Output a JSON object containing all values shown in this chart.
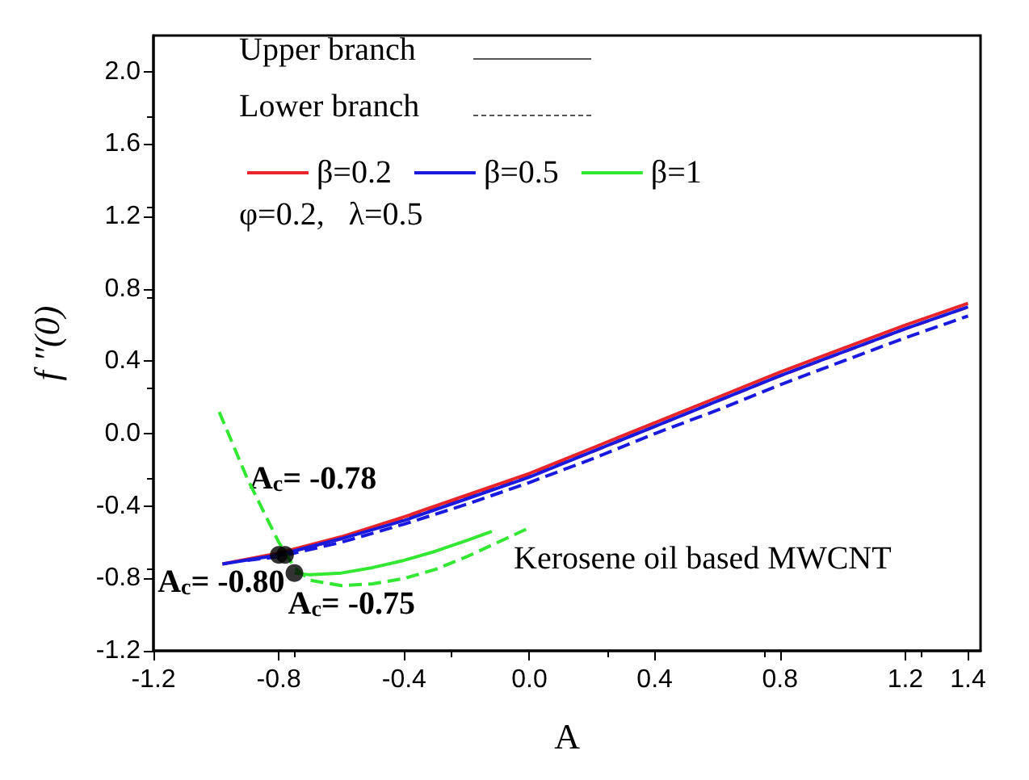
{
  "chart_data": {
    "type": "line",
    "xlabel": "A",
    "ylabel": "f ″(0)",
    "xlim": [
      -1.2,
      1.44
    ],
    "xticks": [
      -1.2,
      -0.8,
      -0.4,
      {
        "value": 0,
        "label": "0.0"
      },
      0.4,
      0.8,
      1.2,
      1.4
    ],
    "ylim": [
      -1.2,
      2.2
    ],
    "yticks": [
      -1.2,
      -0.8,
      -0.4,
      {
        "value": 0,
        "label": "0.0"
      },
      0.4,
      0.8,
      1.2,
      1.6,
      {
        "value": 2,
        "label": "2.0"
      }
    ],
    "grid": false,
    "legend": "top left",
    "marker": "none",
    "annotations": [
      "Upper branch",
      "Lower branch",
      "φ=0.2,   λ=0.5",
      "Kerosene oil based MWCNT",
      {
        "text": "A$_{c}$= -0.78",
        "x": -0.78,
        "y": -0.67
      },
      {
        "text": "A$_{c}$= -0.80",
        "x": -0.8,
        "y": -0.67
      },
      {
        "text": "A$_{c}$= -0.75",
        "x": -0.75,
        "y": -0.77
      }
    ],
    "series": [
      {
        "name": "β=0.2",
        "color": "#e8252a",
        "line_style": "solid",
        "x": [
          -0.98,
          -0.8,
          -0.6,
          -0.4,
          -0.2,
          0,
          0.2,
          0.4,
          0.6,
          0.8,
          1.0,
          1.2,
          1.4
        ],
        "values": [
          -0.72,
          -0.66,
          -0.57,
          -0.46,
          -0.34,
          -0.22,
          -0.08,
          0.06,
          0.2,
          0.34,
          0.47,
          0.6,
          0.72
        ]
      },
      {
        "color": "#e8252a",
        "line_style": "dashed",
        "x": [
          -0.8,
          -0.6,
          -0.4,
          -0.2,
          0,
          0.2,
          0.4,
          0.6,
          0.8,
          1.0,
          1.2,
          1.4
        ],
        "values": [
          -0.67,
          -0.58,
          -0.47,
          -0.35,
          -0.23,
          -0.1,
          0.04,
          0.18,
          0.32,
          0.45,
          0.58,
          0.7
        ]
      },
      {
        "name": "β=0.5",
        "color": "#1a1adf",
        "line_style": "solid",
        "x": [
          -0.98,
          -0.8,
          -0.6,
          -0.4,
          -0.2,
          0,
          0.2,
          0.4,
          0.6,
          0.8,
          1.0,
          1.2,
          1.4
        ],
        "values": [
          -0.72,
          -0.67,
          -0.58,
          -0.48,
          -0.36,
          -0.24,
          -0.1,
          0.04,
          0.18,
          0.32,
          0.45,
          0.58,
          0.7
        ]
      },
      {
        "color": "#1a1adf",
        "line_style": "dashed",
        "x": [
          -0.9,
          -0.8,
          -0.6,
          -0.4,
          -0.2,
          0,
          0.2,
          0.4,
          0.6,
          0.8,
          1.0,
          1.2,
          1.4
        ],
        "values": [
          -0.7,
          -0.68,
          -0.6,
          -0.5,
          -0.39,
          -0.27,
          -0.14,
          0,
          0.13,
          0.27,
          0.4,
          0.53,
          0.65
        ]
      },
      {
        "name": "β=1",
        "color": "#33e833",
        "line_style": "solid",
        "x": [
          -0.75,
          -0.7,
          -0.6,
          -0.5,
          -0.4,
          -0.3,
          -0.2,
          -0.12
        ],
        "values": [
          -0.77,
          -0.78,
          -0.77,
          -0.74,
          -0.7,
          -0.65,
          -0.59,
          -0.54
        ]
      },
      {
        "color": "#33e833",
        "line_style": "dashed",
        "x": [
          -0.99,
          -0.9,
          -0.8,
          -0.75,
          -0.7,
          -0.6,
          -0.5,
          -0.4,
          -0.3,
          -0.2,
          -0.1,
          0.0
        ],
        "values": [
          0.12,
          -0.25,
          -0.6,
          -0.74,
          -0.81,
          -0.84,
          -0.83,
          -0.8,
          -0.75,
          -0.68,
          -0.6,
          -0.52
        ]
      },
      {
        "type": "scatter",
        "marker": "circle",
        "color": "#000000",
        "x": [
          -0.8,
          -0.78,
          -0.75
        ],
        "values": [
          -0.67,
          -0.67,
          -0.77
        ]
      }
    ]
  }
}
